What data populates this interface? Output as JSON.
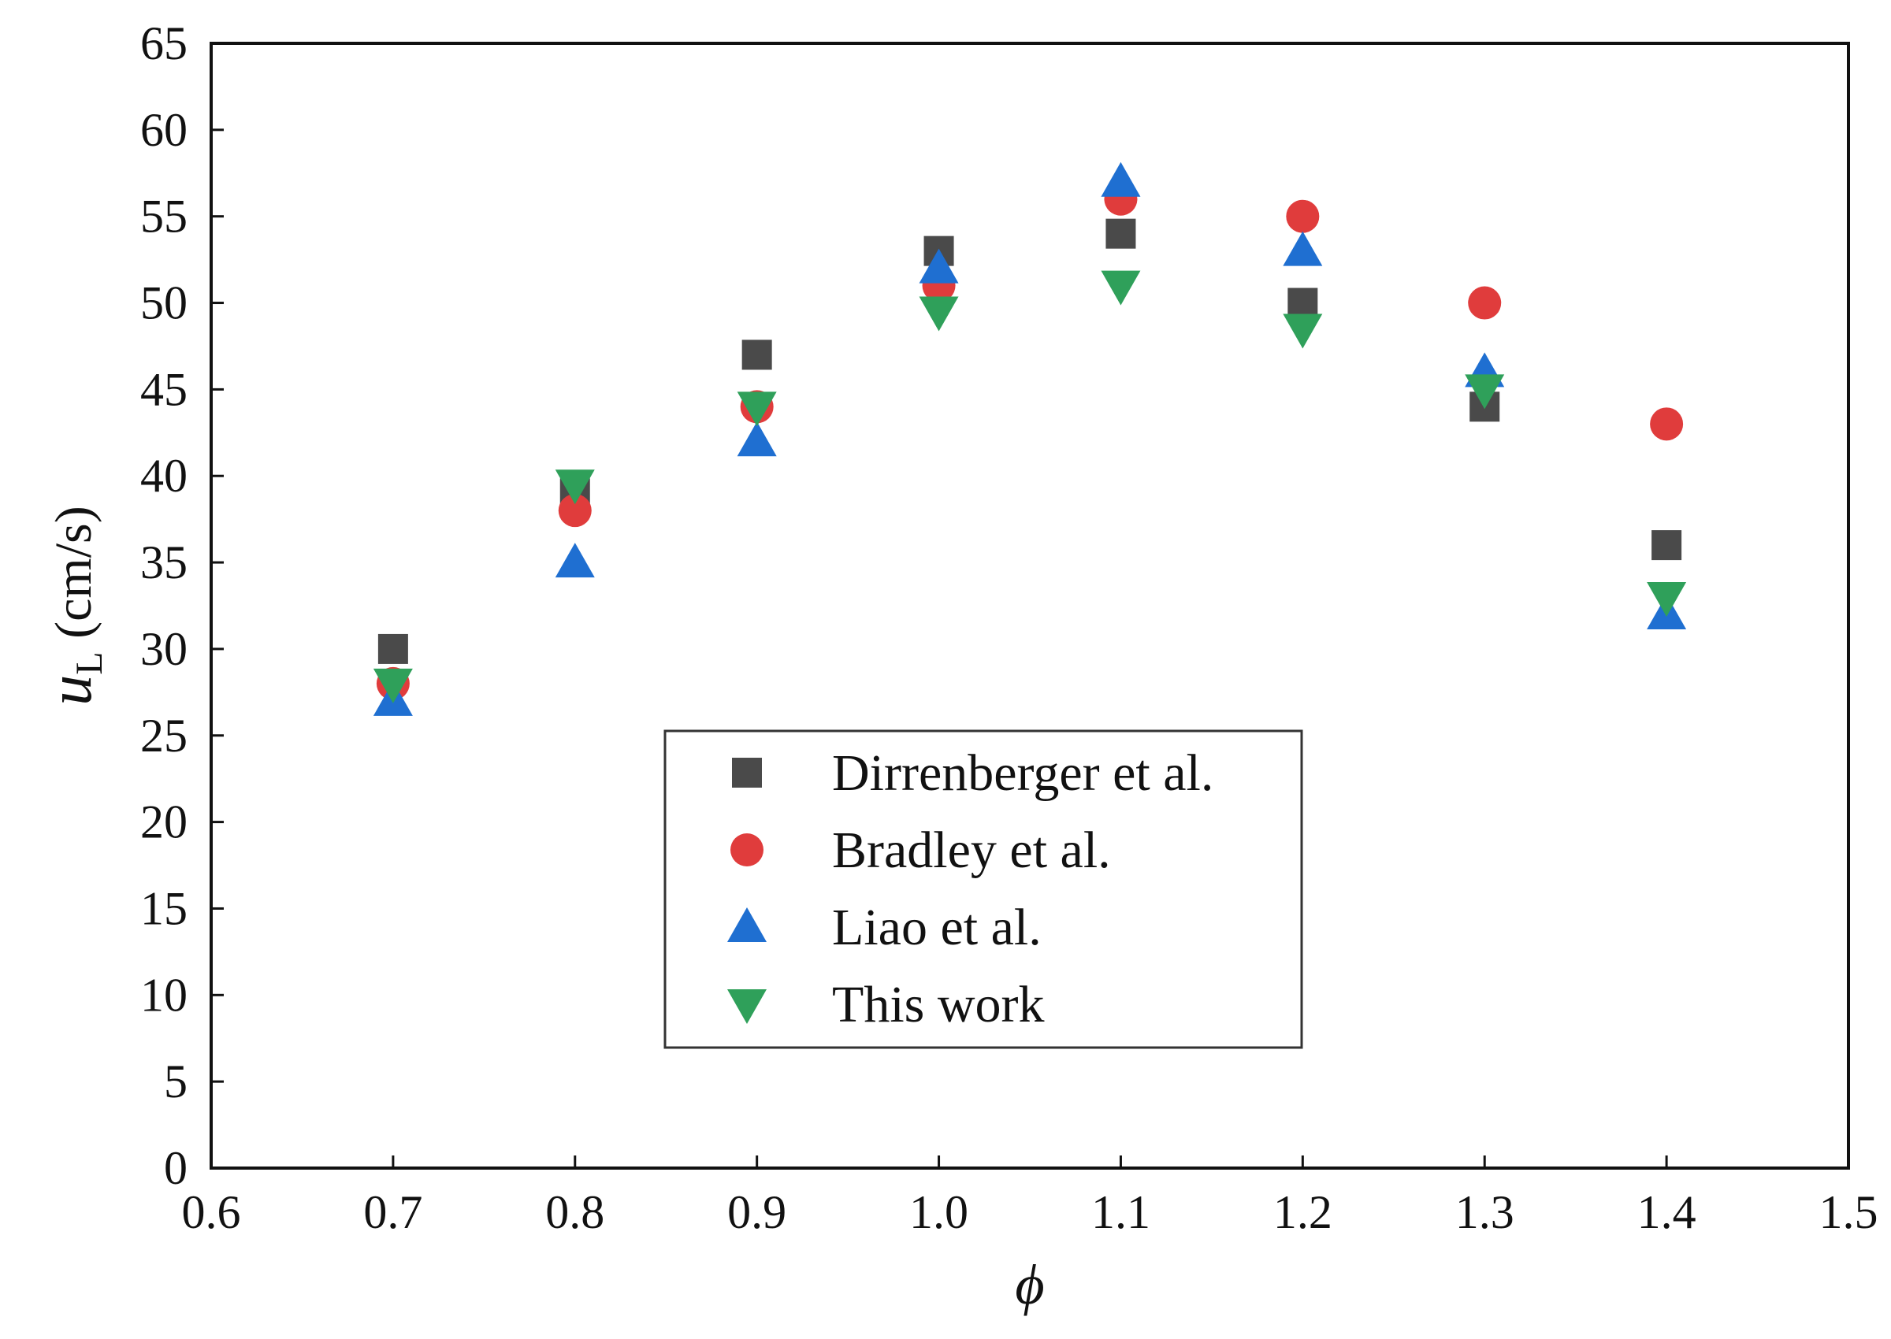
{
  "chart_data": {
    "type": "scatter",
    "title": "",
    "xlabel": "ϕ",
    "ylabel": {
      "main": "u",
      "subscript": "L",
      "unit": " (cm/s)"
    },
    "xlim": [
      0.6,
      1.5
    ],
    "ylim": [
      0,
      65
    ],
    "xticks": [
      "0.6",
      "0.7",
      "0.8",
      "0.9",
      "1.0",
      "1.1",
      "1.2",
      "1.3",
      "1.4",
      "1.5"
    ],
    "yticks": [
      "0",
      "5",
      "10",
      "15",
      "20",
      "25",
      "30",
      "35",
      "40",
      "45",
      "50",
      "55",
      "60",
      "65"
    ],
    "grid": false,
    "legend_position": "lower-center",
    "series": [
      {
        "name": "Dirrenberger et al.",
        "marker": "square",
        "color": "#4a4a4a",
        "x": [
          0.7,
          0.8,
          0.9,
          1.0,
          1.1,
          1.2,
          1.3,
          1.4
        ],
        "y": [
          30,
          39,
          47,
          53,
          54,
          50,
          44,
          36
        ]
      },
      {
        "name": "Bradley et al.",
        "marker": "circle",
        "color": "#e03c3c",
        "x": [
          0.7,
          0.8,
          0.9,
          1.0,
          1.1,
          1.2,
          1.3,
          1.4
        ],
        "y": [
          28,
          38,
          44,
          51,
          56,
          55,
          50,
          43
        ]
      },
      {
        "name": "Liao et al.",
        "marker": "triangle-up",
        "color": "#1f6fd1",
        "x": [
          0.7,
          0.8,
          0.9,
          1.0,
          1.1,
          1.2,
          1.3,
          1.4
        ],
        "y": [
          27,
          35,
          42,
          52,
          57,
          53,
          46,
          32
        ]
      },
      {
        "name": "This work",
        "marker": "triangle-down",
        "color": "#2fa05a",
        "x": [
          0.7,
          0.8,
          0.9,
          1.0,
          1.1,
          1.2,
          1.3,
          1.4
        ],
        "y": [
          28,
          39.5,
          44,
          49.5,
          51,
          48.5,
          45,
          33
        ]
      }
    ]
  }
}
